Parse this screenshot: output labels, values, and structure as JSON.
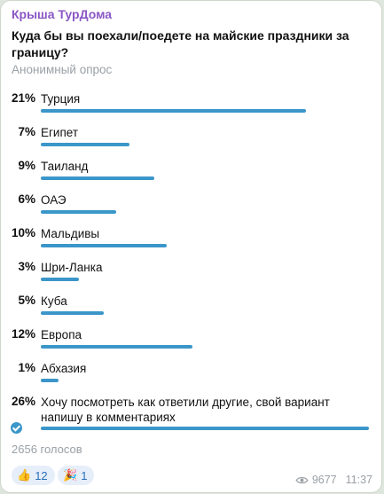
{
  "header": {
    "channel": "Крыша ТурДома",
    "question": "Куда бы вы поехали/поедете на майские праздники за границу?",
    "poll_type": "Анонимный опрос"
  },
  "options": [
    {
      "percent": "21%",
      "label": "Турция",
      "share": 0.21
    },
    {
      "percent": "7%",
      "label": "Египет",
      "share": 0.07
    },
    {
      "percent": "9%",
      "label": "Таиланд",
      "share": 0.09
    },
    {
      "percent": "6%",
      "label": "ОАЭ",
      "share": 0.06
    },
    {
      "percent": "10%",
      "label": "Мальдивы",
      "share": 0.1
    },
    {
      "percent": "3%",
      "label": "Шри-Ланка",
      "share": 0.03
    },
    {
      "percent": "5%",
      "label": "Куба",
      "share": 0.05
    },
    {
      "percent": "12%",
      "label": "Европа",
      "share": 0.12
    },
    {
      "percent": "1%",
      "label": "Абхазия",
      "share": 0.01
    },
    {
      "percent": "26%",
      "label": "Хочу посмотреть как ответили другие, свой вариант напишу в комментариях",
      "share": 0.26,
      "selected": true
    }
  ],
  "footer": {
    "votes": "2656 голосов",
    "reactions": [
      {
        "icon": "thumbs-up-icon",
        "glyph": "👍",
        "count": "12"
      },
      {
        "icon": "party-popper-icon",
        "glyph": "🎉",
        "count": "1"
      }
    ],
    "views": "9677",
    "time": "11:37"
  },
  "colors": {
    "bar": "#3b96c9",
    "channel": "#8a57c4",
    "muted": "#9aa0a6"
  }
}
